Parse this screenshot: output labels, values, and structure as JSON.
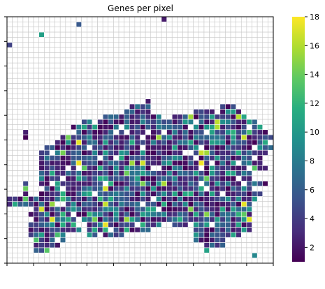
{
  "chart_data": {
    "type": "heatmap",
    "title": "Genes per pixel",
    "xlabel": "",
    "ylabel": "",
    "grid": true,
    "grid_size": [
      50,
      48
    ],
    "colormap": "viridis",
    "empty_cell_color": "#ffffff",
    "grid_line_color": "#c8c8c8",
    "colorbar": {
      "range": [
        1,
        18
      ],
      "ticks": [
        "2",
        "4",
        "6",
        "8",
        "10",
        "12",
        "14",
        "16",
        "18"
      ]
    },
    "row_spans": [
      [
        [
          29,
          29
        ]
      ],
      [
        [
          13,
          13
        ]
      ],
      [],
      [
        [
          6,
          6
        ]
      ],
      [],
      [
        [
          0,
          0
        ]
      ],
      [],
      [],
      [],
      [],
      [],
      [],
      [],
      [],
      [],
      [],
      [
        [
          26,
          26
        ]
      ],
      [
        [
          23,
          26
        ],
        [
          40,
          42
        ]
      ],
      [
        [
          22,
          26
        ],
        [
          35,
          43
        ]
      ],
      [
        [
          18,
          28
        ],
        [
          31,
          44
        ]
      ],
      [
        [
          14,
          46
        ]
      ],
      [
        [
          12,
          47
        ]
      ],
      [
        [
          3,
          3
        ],
        [
          11,
          48
        ]
      ],
      [
        [
          3,
          3
        ],
        [
          10,
          49
        ]
      ],
      [
        [
          9,
          48
        ]
      ],
      [
        [
          7,
          49
        ]
      ],
      [
        [
          6,
          48
        ]
      ],
      [
        [
          6,
          47
        ]
      ],
      [
        [
          6,
          47
        ]
      ],
      [
        [
          6,
          48
        ]
      ],
      [
        [
          6,
          46
        ]
      ],
      [
        [
          6,
          45
        ]
      ],
      [
        [
          3,
          3
        ],
        [
          6,
          48
        ]
      ],
      [
        [
          3,
          3
        ],
        [
          6,
          45
        ]
      ],
      [
        [
          3,
          3
        ],
        [
          6,
          47
        ]
      ],
      [
        [
          0,
          10
        ],
        [
          6,
          46
        ]
      ],
      [
        [
          0,
          7
        ],
        [
          6,
          45
        ]
      ],
      [
        [
          5,
          45
        ]
      ],
      [
        [
          4,
          45
        ]
      ],
      [
        [
          4,
          45
        ]
      ],
      [
        [
          4,
          12
        ],
        [
          15,
          23
        ],
        [
          25,
          28
        ],
        [
          31,
          45
        ]
      ],
      [
        [
          4,
          15
        ],
        [
          16,
          26
        ],
        [
          35,
          45
        ]
      ],
      [
        [
          4,
          10
        ],
        [
          15,
          21
        ],
        [
          35,
          43
        ]
      ],
      [
        [
          5,
          10
        ],
        [
          35,
          40
        ]
      ],
      [
        [
          5,
          9
        ],
        [
          37,
          40
        ]
      ],
      [
        [
          5,
          7
        ],
        [
          37,
          37
        ]
      ],
      [
        [
          46,
          46
        ]
      ],
      []
    ],
    "values_note": "pixels colored per gene count; highest values ~18 near right bottom region"
  }
}
